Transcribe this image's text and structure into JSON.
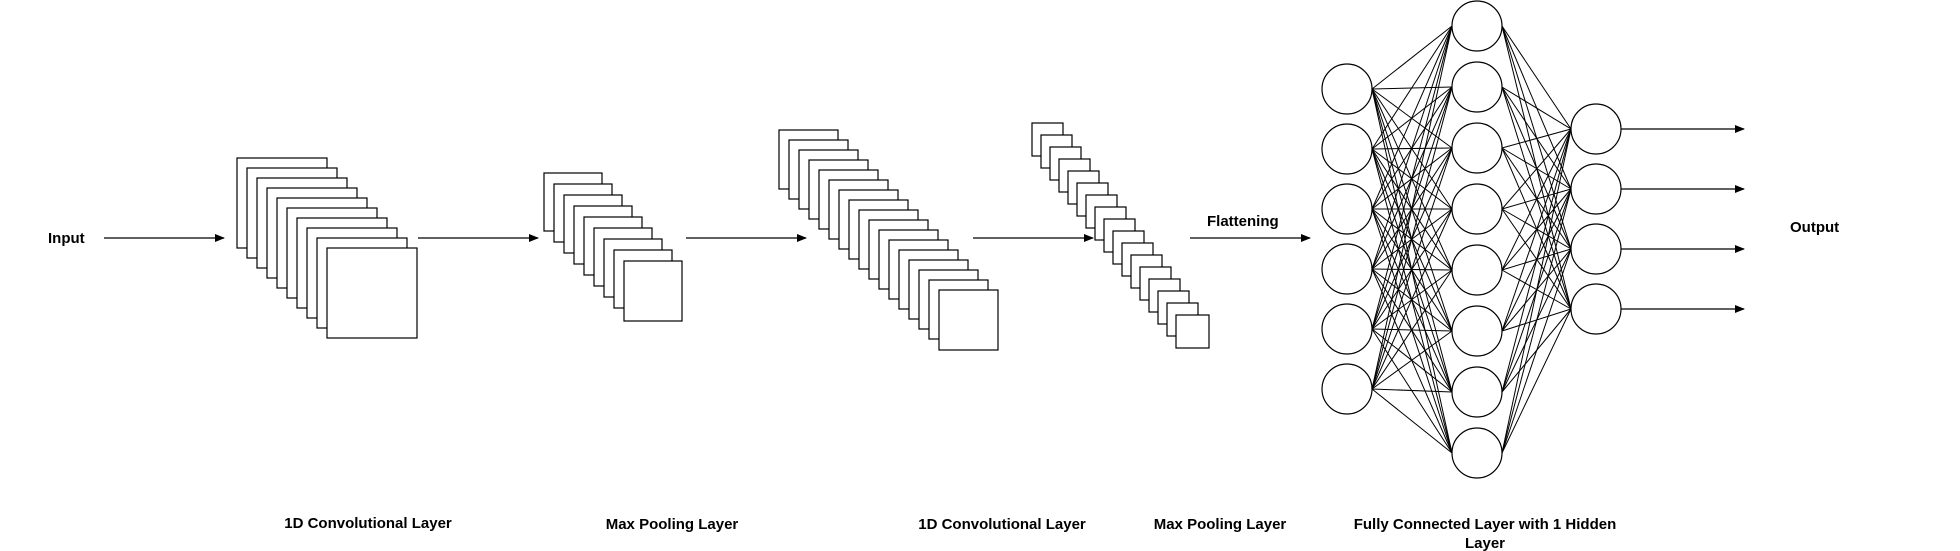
{
  "labels": {
    "input": "Input",
    "flattening": "Flattening",
    "output": "Output",
    "conv1": "1D Convolutional Layer",
    "pool1": "Max Pooling Layer",
    "conv2": "1D Convolutional Layer",
    "pool2": "Max Pooling Layer",
    "fc_line1": "Fully Connected Layer with 1 Hidden",
    "fc_line2": "Layer"
  },
  "stacks": {
    "conv1": {
      "sheets": 10
    },
    "pool1": {
      "sheets": 9
    },
    "conv2": {
      "sheets": 17
    },
    "pool2": {
      "sheets": 17
    }
  },
  "network": {
    "input_nodes": 6,
    "hidden_nodes": 8,
    "output_nodes": 4,
    "output_arrows": 4
  }
}
